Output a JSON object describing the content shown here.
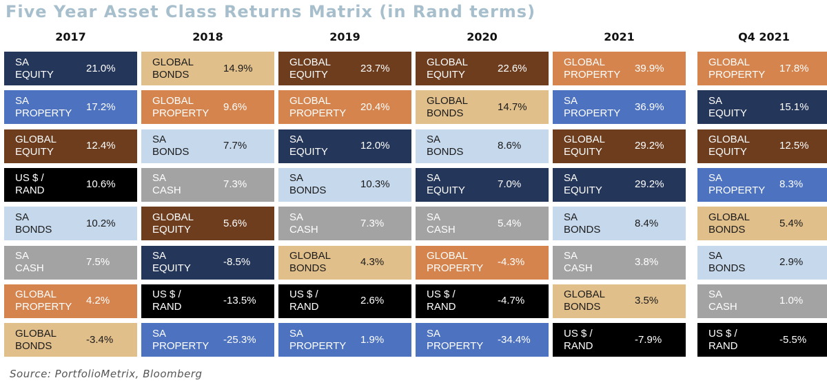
{
  "title": "Five Year Asset Class Returns Matrix (in Rand terms)",
  "source": "Source: PortfolioMetrix, Bloomberg",
  "colors": {
    "SA EQUITY": {
      "bg": "#243659",
      "fg": "#ffffff"
    },
    "SA PROPERTY": {
      "bg": "#4c72c0",
      "fg": "#ffffff"
    },
    "GLOBAL EQUITY": {
      "bg": "#6d3d1e",
      "fg": "#ffffff"
    },
    "US $ / RAND": {
      "bg": "#000000",
      "fg": "#ffffff"
    },
    "SA BONDS": {
      "bg": "#c6d8ec",
      "fg": "#1a1a1a"
    },
    "SA CASH": {
      "bg": "#a3a3a3",
      "fg": "#ffffff"
    },
    "GLOBAL PROPERTY": {
      "bg": "#d5844e",
      "fg": "#ffffff"
    },
    "GLOBAL BONDS": {
      "bg": "#e1bf8b",
      "fg": "#1a1a1a"
    }
  },
  "chart_data": {
    "type": "table",
    "columns": [
      {
        "header": "2017",
        "rows": [
          {
            "line1": "SA",
            "line2": "EQUITY",
            "key": "SA EQUITY",
            "value": "21.0%"
          },
          {
            "line1": "SA",
            "line2": "PROPERTY",
            "key": "SA PROPERTY",
            "value": "17.2%"
          },
          {
            "line1": "GLOBAL",
            "line2": "EQUITY",
            "key": "GLOBAL EQUITY",
            "value": "12.4%"
          },
          {
            "line1": "US $ /",
            "line2": "RAND",
            "key": "US $ / RAND",
            "value": "10.6%"
          },
          {
            "line1": "SA",
            "line2": "BONDS",
            "key": "SA BONDS",
            "value": "10.2%"
          },
          {
            "line1": "SA",
            "line2": "CASH",
            "key": "SA CASH",
            "value": "7.5%"
          },
          {
            "line1": "GLOBAL",
            "line2": "PROPERTY",
            "key": "GLOBAL PROPERTY",
            "value": "4.2%"
          },
          {
            "line1": "GLOBAL",
            "line2": "BONDS",
            "key": "GLOBAL BONDS",
            "value": "-3.4%"
          }
        ]
      },
      {
        "header": "2018",
        "rows": [
          {
            "line1": "GLOBAL",
            "line2": "BONDS",
            "key": "GLOBAL BONDS",
            "value": "14.9%"
          },
          {
            "line1": "GLOBAL",
            "line2": "PROPERTY",
            "key": "GLOBAL PROPERTY",
            "value": "9.6%"
          },
          {
            "line1": "SA",
            "line2": "BONDS",
            "key": "SA BONDS",
            "value": "7.7%"
          },
          {
            "line1": "SA",
            "line2": "CASH",
            "key": "SA CASH",
            "value": "7.3%"
          },
          {
            "line1": "GLOBAL",
            "line2": "EQUITY",
            "key": "GLOBAL EQUITY",
            "value": "5.6%"
          },
          {
            "line1": "SA",
            "line2": "EQUITY",
            "key": "SA EQUITY",
            "value": "-8.5%"
          },
          {
            "line1": "US $ /",
            "line2": "RAND",
            "key": "US $ / RAND",
            "value": "-13.5%"
          },
          {
            "line1": "SA",
            "line2": "PROPERTY",
            "key": "SA PROPERTY",
            "value": "-25.3%"
          }
        ]
      },
      {
        "header": "2019",
        "rows": [
          {
            "line1": "GLOBAL",
            "line2": "EQUITY",
            "key": "GLOBAL EQUITY",
            "value": "23.7%"
          },
          {
            "line1": "GLOBAL",
            "line2": "PROPERTY",
            "key": "GLOBAL PROPERTY",
            "value": "20.4%"
          },
          {
            "line1": "SA",
            "line2": "EQUITY",
            "key": "SA EQUITY",
            "value": "12.0%"
          },
          {
            "line1": "SA",
            "line2": "BONDS",
            "key": "SA BONDS",
            "value": "10.3%"
          },
          {
            "line1": "SA",
            "line2": "CASH",
            "key": "SA CASH",
            "value": "7.3%"
          },
          {
            "line1": "GLOBAL",
            "line2": "BONDS",
            "key": "GLOBAL BONDS",
            "value": "4.3%"
          },
          {
            "line1": "US $ /",
            "line2": "RAND",
            "key": "US $ / RAND",
            "value": "2.6%"
          },
          {
            "line1": "SA",
            "line2": "PROPERTY",
            "key": "SA PROPERTY",
            "value": "1.9%"
          }
        ]
      },
      {
        "header": "2020",
        "rows": [
          {
            "line1": "GLOBAL",
            "line2": "EQUITY",
            "key": "GLOBAL EQUITY",
            "value": "22.6%"
          },
          {
            "line1": "GLOBAL",
            "line2": "BONDS",
            "key": "GLOBAL BONDS",
            "value": "14.7%"
          },
          {
            "line1": "SA",
            "line2": "BONDS",
            "key": "SA BONDS",
            "value": "8.6%"
          },
          {
            "line1": "SA",
            "line2": "EQUITY",
            "key": "SA EQUITY",
            "value": "7.0%"
          },
          {
            "line1": "SA",
            "line2": "CASH",
            "key": "SA CASH",
            "value": "5.4%"
          },
          {
            "line1": "GLOBAL",
            "line2": "PROPERTY",
            "key": "GLOBAL PROPERTY",
            "value": "-4.3%"
          },
          {
            "line1": "US $ /",
            "line2": "RAND",
            "key": "US $ / RAND",
            "value": "-4.7%"
          },
          {
            "line1": "SA",
            "line2": "PROPERTY",
            "key": "SA PROPERTY",
            "value": "-34.4%"
          }
        ]
      },
      {
        "header": "2021",
        "rows": [
          {
            "line1": "GLOBAL",
            "line2": "PROPERTY",
            "key": "GLOBAL PROPERTY",
            "value": "39.9%"
          },
          {
            "line1": "SA",
            "line2": "PROPERTY",
            "key": "SA PROPERTY",
            "value": "36.9%"
          },
          {
            "line1": "GLOBAL",
            "line2": "EQUITY",
            "key": "GLOBAL EQUITY",
            "value": "29.2%"
          },
          {
            "line1": "SA",
            "line2": "EQUITY",
            "key": "SA EQUITY",
            "value": "29.2%"
          },
          {
            "line1": "SA",
            "line2": "BONDS",
            "key": "SA BONDS",
            "value": "8.4%"
          },
          {
            "line1": "SA",
            "line2": "CASH",
            "key": "SA CASH",
            "value": "3.8%"
          },
          {
            "line1": "GLOBAL",
            "line2": "BONDS",
            "key": "GLOBAL BONDS",
            "value": "3.5%"
          },
          {
            "line1": "US $ /",
            "line2": "RAND",
            "key": "US $ / RAND",
            "value": "-7.9%"
          }
        ]
      },
      {
        "header": "Q4 2021",
        "rows": [
          {
            "line1": "GLOBAL",
            "line2": "PROPERTY",
            "key": "GLOBAL PROPERTY",
            "value": "17.8%"
          },
          {
            "line1": "SA",
            "line2": "EQUITY",
            "key": "SA EQUITY",
            "value": "15.1%"
          },
          {
            "line1": "GLOBAL",
            "line2": "EQUITY",
            "key": "GLOBAL EQUITY",
            "value": "12.5%"
          },
          {
            "line1": "SA",
            "line2": "PROPERTY",
            "key": "SA PROPERTY",
            "value": "8.3%"
          },
          {
            "line1": "GLOBAL",
            "line2": "BONDS",
            "key": "GLOBAL BONDS",
            "value": "5.4%"
          },
          {
            "line1": "SA",
            "line2": "BONDS",
            "key": "SA BONDS",
            "value": "2.9%"
          },
          {
            "line1": "SA",
            "line2": "CASH",
            "key": "SA CASH",
            "value": "1.0%"
          },
          {
            "line1": "US $ /",
            "line2": "RAND",
            "key": "US $ / RAND",
            "value": "-5.5%"
          }
        ]
      }
    ]
  }
}
